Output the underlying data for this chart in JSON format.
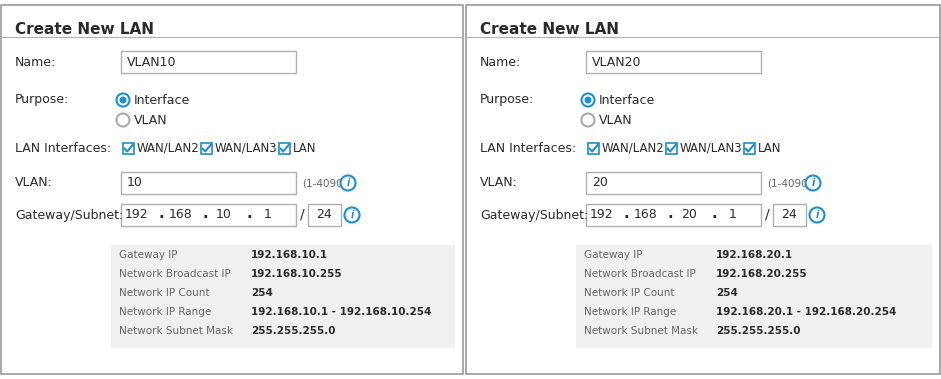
{
  "bg_color": "#ffffff",
  "border_color": "#b0b0b0",
  "blue": "#1a8fd1",
  "gray_bg": "#f0f0f0",
  "dark_text": "#2a2a2a",
  "label_color": "#666666",
  "panel_border": "#b0b0b0",
  "outer_border": "#999999",
  "panels": [
    {
      "title": "Create New LAN",
      "name_value": "VLAN10",
      "vlan_value": "10",
      "gateway_parts": [
        "192",
        "168",
        "10",
        "1"
      ],
      "subnet": "24",
      "info_rows": [
        [
          "Gateway IP",
          "192.168.10.1"
        ],
        [
          "Network Broadcast IP",
          "192.168.10.255"
        ],
        [
          "Network IP Count",
          "254"
        ],
        [
          "Network IP Range",
          "192.168.10.1 - 192.168.10.254"
        ],
        [
          "Network Subnet Mask",
          "255.255.255.0"
        ]
      ]
    },
    {
      "title": "Create New LAN",
      "name_value": "VLAN20",
      "vlan_value": "20",
      "gateway_parts": [
        "192",
        "168",
        "20",
        "1"
      ],
      "subnet": "24",
      "info_rows": [
        [
          "Gateway IP",
          "192.168.20.1"
        ],
        [
          "Network Broadcast IP",
          "192.168.20.255"
        ],
        [
          "Network IP Count",
          "254"
        ],
        [
          "Network IP Range",
          "192.168.20.1 - 192.168.20.254"
        ],
        [
          "Network Subnet Mask",
          "255.255.255.0"
        ]
      ]
    }
  ]
}
